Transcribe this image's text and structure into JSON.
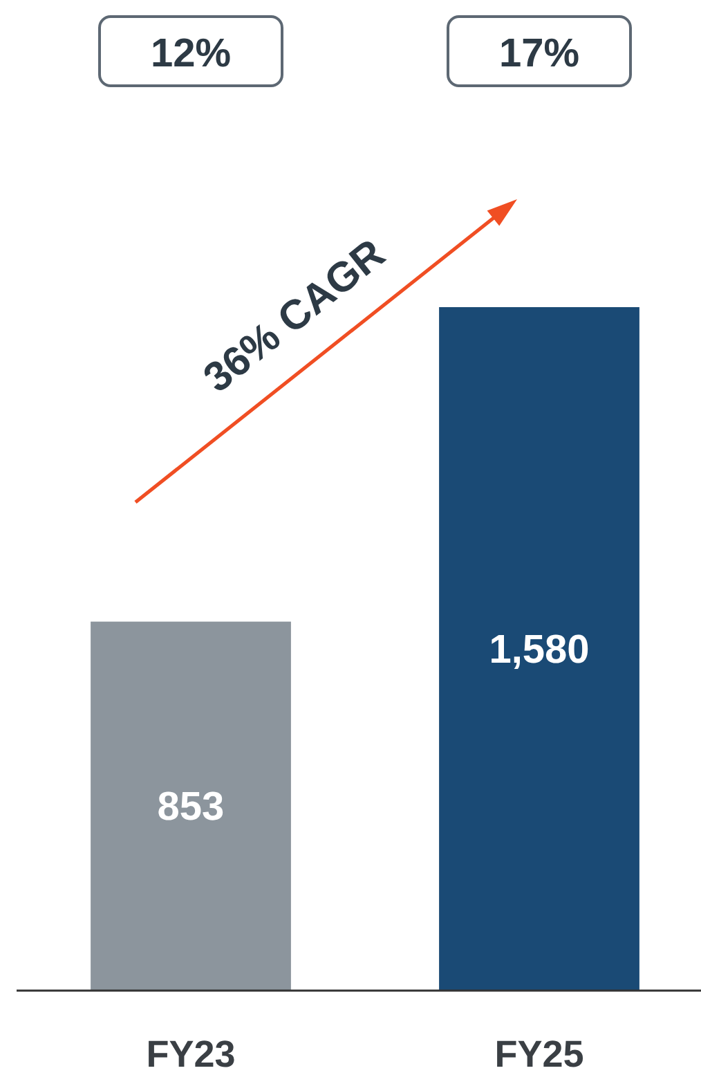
{
  "chart_data": {
    "type": "bar",
    "categories": [
      "FY23",
      "FY25"
    ],
    "values": [
      853,
      1580
    ],
    "colors": [
      "#8c959d",
      "#1a4a75"
    ],
    "data_labels": true,
    "value_labels": [
      "853",
      "1,580"
    ],
    "annotations": [
      "12%",
      "17%",
      "36% CAGR"
    ]
  }
}
